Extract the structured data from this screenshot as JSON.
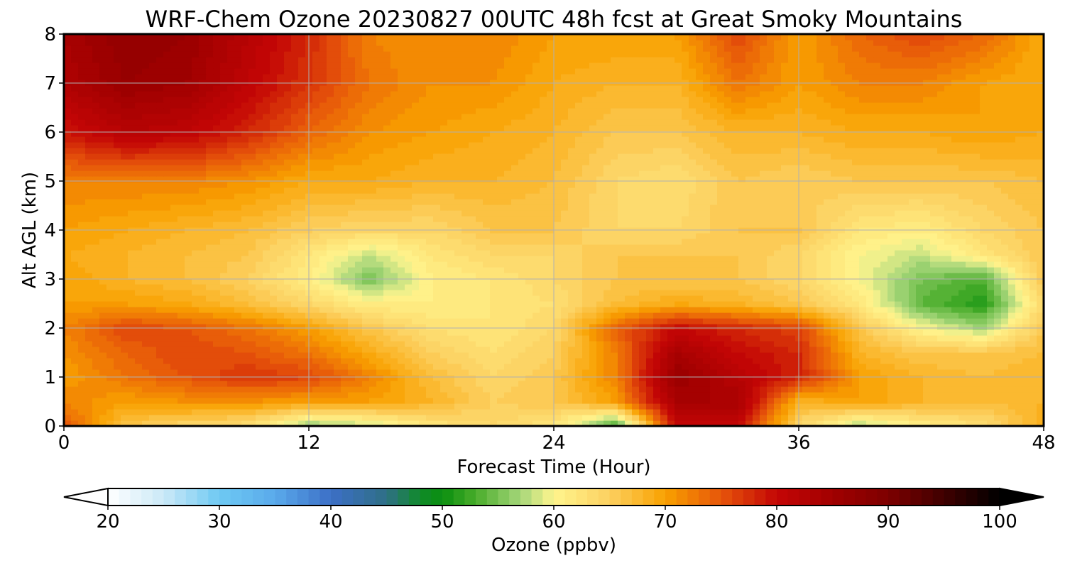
{
  "chart_data": {
    "type": "heatmap",
    "title": "WRF-Chem Ozone  20230827 00UTC 48h fcst at Great Smoky Mountains",
    "xlabel": "Forecast Time (Hour)",
    "ylabel": "Alt AGL (km)",
    "xlim": [
      0,
      48
    ],
    "ylim": [
      0,
      8
    ],
    "xticks": [
      0,
      12,
      24,
      36,
      48
    ],
    "yticks": [
      0,
      1,
      2,
      3,
      4,
      5,
      6,
      7,
      8
    ],
    "grid": true,
    "x_hours": [
      0,
      3,
      6,
      9,
      12,
      15,
      18,
      21,
      24,
      27,
      30,
      33,
      36,
      39,
      42,
      45,
      48
    ],
    "z_km": [
      0,
      0.5,
      1,
      1.5,
      2,
      2.5,
      3,
      3.5,
      4,
      5,
      6,
      7,
      8
    ],
    "ozone_ppbv": [
      [
        75,
        66,
        64,
        63,
        56,
        58,
        62,
        64,
        62,
        52,
        80,
        80,
        64,
        57,
        61,
        63,
        69
      ],
      [
        72,
        70,
        71,
        71,
        70,
        70,
        68,
        65,
        66,
        70,
        84,
        84,
        68,
        70,
        68,
        67,
        68
      ],
      [
        70,
        73,
        75,
        77,
        76,
        72,
        67,
        64,
        66,
        72,
        86,
        82,
        78,
        70,
        68,
        67,
        68
      ],
      [
        71,
        74,
        76,
        75,
        73,
        69,
        65,
        63,
        65,
        72,
        84,
        80,
        78,
        68,
        66,
        66,
        67
      ],
      [
        72,
        76,
        75,
        73,
        70,
        66,
        63,
        62,
        64,
        74,
        80,
        78,
        76,
        66,
        60,
        57,
        66
      ],
      [
        70,
        70,
        69,
        67,
        64,
        61,
        61,
        62,
        63,
        67,
        69,
        68,
        66,
        62,
        54,
        51,
        64
      ],
      [
        70,
        68,
        67,
        65,
        61,
        55,
        61,
        62,
        64,
        66,
        66,
        66,
        64,
        60,
        55,
        53,
        66
      ],
      [
        69,
        68,
        67,
        66,
        62,
        58,
        62,
        64,
        64,
        66,
        66,
        66,
        64,
        60,
        58,
        62,
        66
      ],
      [
        70,
        69,
        68,
        67,
        65,
        64,
        64,
        66,
        66,
        64,
        64,
        66,
        66,
        62,
        61,
        64,
        66
      ],
      [
        72,
        72,
        72,
        71,
        69,
        69,
        68,
        68,
        67,
        64,
        63,
        66,
        65,
        66,
        66,
        66,
        67
      ],
      [
        79,
        82,
        81,
        78,
        74,
        71,
        70,
        69,
        68,
        66,
        66,
        68,
        68,
        69,
        69,
        70,
        69
      ],
      [
        83,
        86,
        85,
        81,
        77,
        73,
        71,
        71,
        69,
        68,
        68,
        73,
        70,
        72,
        72,
        70,
        69
      ],
      [
        84,
        87,
        86,
        82,
        78,
        72,
        71,
        72,
        70,
        70,
        70,
        76,
        70,
        74,
        76,
        74,
        69
      ]
    ],
    "colorbar": {
      "label": "Ozone  (ppbv)",
      "min": 20,
      "max": 100,
      "step": 1,
      "ticks": [
        20,
        30,
        40,
        50,
        60,
        70,
        80,
        90,
        100
      ],
      "extend": "both",
      "colors": [
        {
          "value": 20,
          "color": "#ffffff"
        },
        {
          "value": 25,
          "color": "#cbe9f7"
        },
        {
          "value": 30,
          "color": "#6ec9f3"
        },
        {
          "value": 35,
          "color": "#5aaaeb"
        },
        {
          "value": 40,
          "color": "#3c6fc6"
        },
        {
          "value": 45,
          "color": "#2f6f86"
        },
        {
          "value": 48,
          "color": "#108a2a"
        },
        {
          "value": 50,
          "color": "#0b8f0f"
        },
        {
          "value": 53,
          "color": "#49ad2b"
        },
        {
          "value": 57,
          "color": "#a5d67a"
        },
        {
          "value": 60,
          "color": "#fff58e"
        },
        {
          "value": 65,
          "color": "#fcd060"
        },
        {
          "value": 70,
          "color": "#f9a100"
        },
        {
          "value": 75,
          "color": "#e6550a"
        },
        {
          "value": 80,
          "color": "#c40606"
        },
        {
          "value": 85,
          "color": "#a10000"
        },
        {
          "value": 90,
          "color": "#7d0000"
        },
        {
          "value": 95,
          "color": "#3f0000"
        },
        {
          "value": 100,
          "color": "#000000"
        }
      ]
    }
  }
}
